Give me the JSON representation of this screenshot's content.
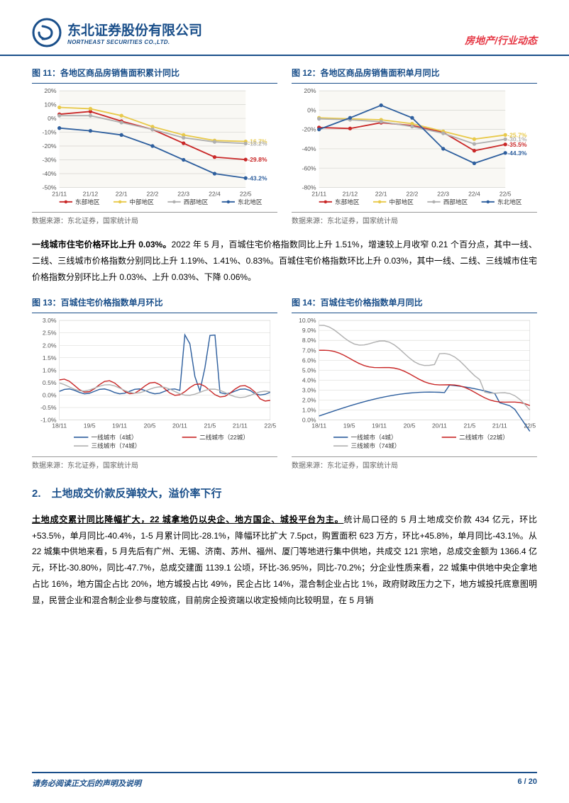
{
  "header": {
    "company_cn": "东北证券股份有限公司",
    "company_en": "NORTHEAST SECURITIES CO.,LTD.",
    "breadcrumb": "房地产/行业动态"
  },
  "chart11": {
    "title": "图 11：各地区商品房销售面积累计同比",
    "source": "数据来源：东北证券，国家统计局",
    "x": [
      "21/11",
      "21/12",
      "22/1",
      "22/2",
      "22/3",
      "22/4",
      "22/5"
    ],
    "series": [
      {
        "name": "东部地区",
        "color": "#c92828",
        "values": [
          3,
          5,
          -2,
          -8,
          -18,
          -28,
          -29.8
        ],
        "end_label": "-29.8%"
      },
      {
        "name": "中部地区",
        "color": "#e8c94a",
        "values": [
          8,
          7,
          2,
          -6,
          -12,
          -16,
          -16.7
        ],
        "end_label": "-16.7%"
      },
      {
        "name": "西部地区",
        "color": "#b0b0b0",
        "values": [
          2,
          2,
          -3,
          -8,
          -14,
          -17,
          -18.2
        ],
        "end_label": "-18.2%"
      },
      {
        "name": "东北地区",
        "color": "#2e5f9e",
        "values": [
          -7,
          -9,
          -12,
          -20,
          -30,
          -40,
          -43.2
        ],
        "end_label": "-43.2%"
      }
    ],
    "ylim": [
      -50,
      20
    ],
    "yticks": [
      -50,
      -40,
      -30,
      -20,
      -10,
      0,
      10,
      20
    ],
    "bg": "#f9f8f4",
    "grid": "#d5d5d0",
    "font": 8.5
  },
  "chart12": {
    "title": "图 12：各地区商品房销售面积单月同比",
    "source": "数据来源：东北证券，国家统计局",
    "x": [
      "21/11",
      "21/12",
      "22/1",
      "22/2",
      "22/3",
      "22/4",
      "22/5"
    ],
    "series": [
      {
        "name": "东部地区",
        "color": "#c92828",
        "values": [
          -18,
          -19,
          -13,
          -16,
          -23,
          -42,
          -35.5
        ],
        "end_label": "-35.5%"
      },
      {
        "name": "中部地区",
        "color": "#e8c94a",
        "values": [
          -8,
          -9,
          -10,
          -14,
          -22,
          -30,
          -25.7
        ],
        "end_label": "-25.7%"
      },
      {
        "name": "西部地区",
        "color": "#b0b0b0",
        "values": [
          -9,
          -10,
          -12,
          -17,
          -24,
          -35,
          -30.1
        ],
        "end_label": "-30.1%"
      },
      {
        "name": "东北地区",
        "color": "#2e5f9e",
        "values": [
          -20,
          -8,
          5,
          -8,
          -40,
          -55,
          -44.3
        ],
        "end_label": "-44.3%"
      }
    ],
    "ylim": [
      -80,
      20
    ],
    "yticks": [
      -80,
      -60,
      -40,
      -20,
      0,
      20
    ],
    "bg": "#f9f8f4",
    "grid": "#d5d5d0",
    "font": 8.5
  },
  "para1": {
    "bold": "一线城市住宅价格环比上升 0.03%。",
    "rest": "2022 年 5 月，百城住宅价格指数同比上升 1.51%，增速较上月收窄 0.21 个百分点，其中一线、二线、三线城市价格指数分别同比上升 1.19%、1.41%、0.83%。百城住宅价格指数环比上升 0.03%，其中一线、二线、三线城市住宅价格指数分别环比上升 0.03%、上升 0.03%、下降 0.06%。"
  },
  "chart13": {
    "title": "图 13：百城住宅价格指数单月环比",
    "source": "数据来源：东北证券，国家统计局",
    "x_start": "18/11",
    "x_end": "22/5",
    "x": [
      "18/11",
      "19/5",
      "19/11",
      "20/5",
      "20/11",
      "21/5",
      "21/11",
      "22/5"
    ],
    "series": [
      {
        "name": "一线城市（4城）",
        "color": "#2e5f9e"
      },
      {
        "name": "二线城市（22城）",
        "color": "#c92828"
      },
      {
        "name": "三线城市（74城）",
        "color": "#b0b0b0"
      }
    ],
    "ylim": [
      -1.0,
      3.0
    ],
    "yticks": [
      -1.0,
      -0.5,
      0.0,
      0.5,
      1.0,
      1.5,
      2.0,
      2.5,
      3.0
    ],
    "bg": "#ffffff",
    "grid": "#d5d5d0",
    "font": 8.5
  },
  "chart14": {
    "title": "图 14：百城住宅价格指数单月同比",
    "source": "数据来源：东北证券，国家统计局",
    "x": [
      "18/11",
      "19/5",
      "19/11",
      "20/5",
      "20/11",
      "21/5",
      "21/11",
      "22/5"
    ],
    "series": [
      {
        "name": "一线城市（4城）",
        "color": "#2e5f9e"
      },
      {
        "name": "二线城市（22城）",
        "color": "#c92828"
      },
      {
        "name": "三线城市（74城）",
        "color": "#b0b0b0"
      }
    ],
    "ylim": [
      0.0,
      10.0
    ],
    "yticks": [
      0,
      1,
      2,
      3,
      4,
      5,
      6,
      7,
      8,
      9,
      10
    ],
    "bg": "#ffffff",
    "grid": "#d5d5d0",
    "font": 8.5
  },
  "section2": {
    "heading": "2.　土地成交价款反弹较大，溢价率下行",
    "para_u": "土地成交累计同比降幅扩大，22 城拿地仍以央企、地方国企、城投平台为主。",
    "para_rest": "统计局口径的 5 月土地成交价款 434 亿元，环比+53.5%，单月同比-40.4%，1-5 月累计同比-28.1%，降幅环比扩大 7.5pct，购置面积 623 万方，环比+45.8%，单月同比-43.1%。从 22 城集中供地来看，5 月先后有广州、无锡、济南、苏州、福州、厦门等地进行集中供地，共成交 121 宗地，总成交金额为 1366.4 亿元，环比-30.80%，同比-47.7%，总成交建面 1139.1 公顷，环比-36.95%，同比-70.2%；分企业性质来看，22 城集中供地中央企拿地占比 16%，地方国企占比 20%，地方城投占比 49%，民企占比 14%，混合制企业占比 1%，政府财政压力之下，地方城投托底意图明显，民营企业和混合制企业参与度较底，目前房企投资端以收定投倾向比较明显，在 5 月销"
  },
  "footer": {
    "left": "请务必阅读正文后的声明及说明",
    "right": "6 / 20"
  },
  "colors": {
    "brand": "#1a4f8a",
    "accent": "#e63946"
  }
}
